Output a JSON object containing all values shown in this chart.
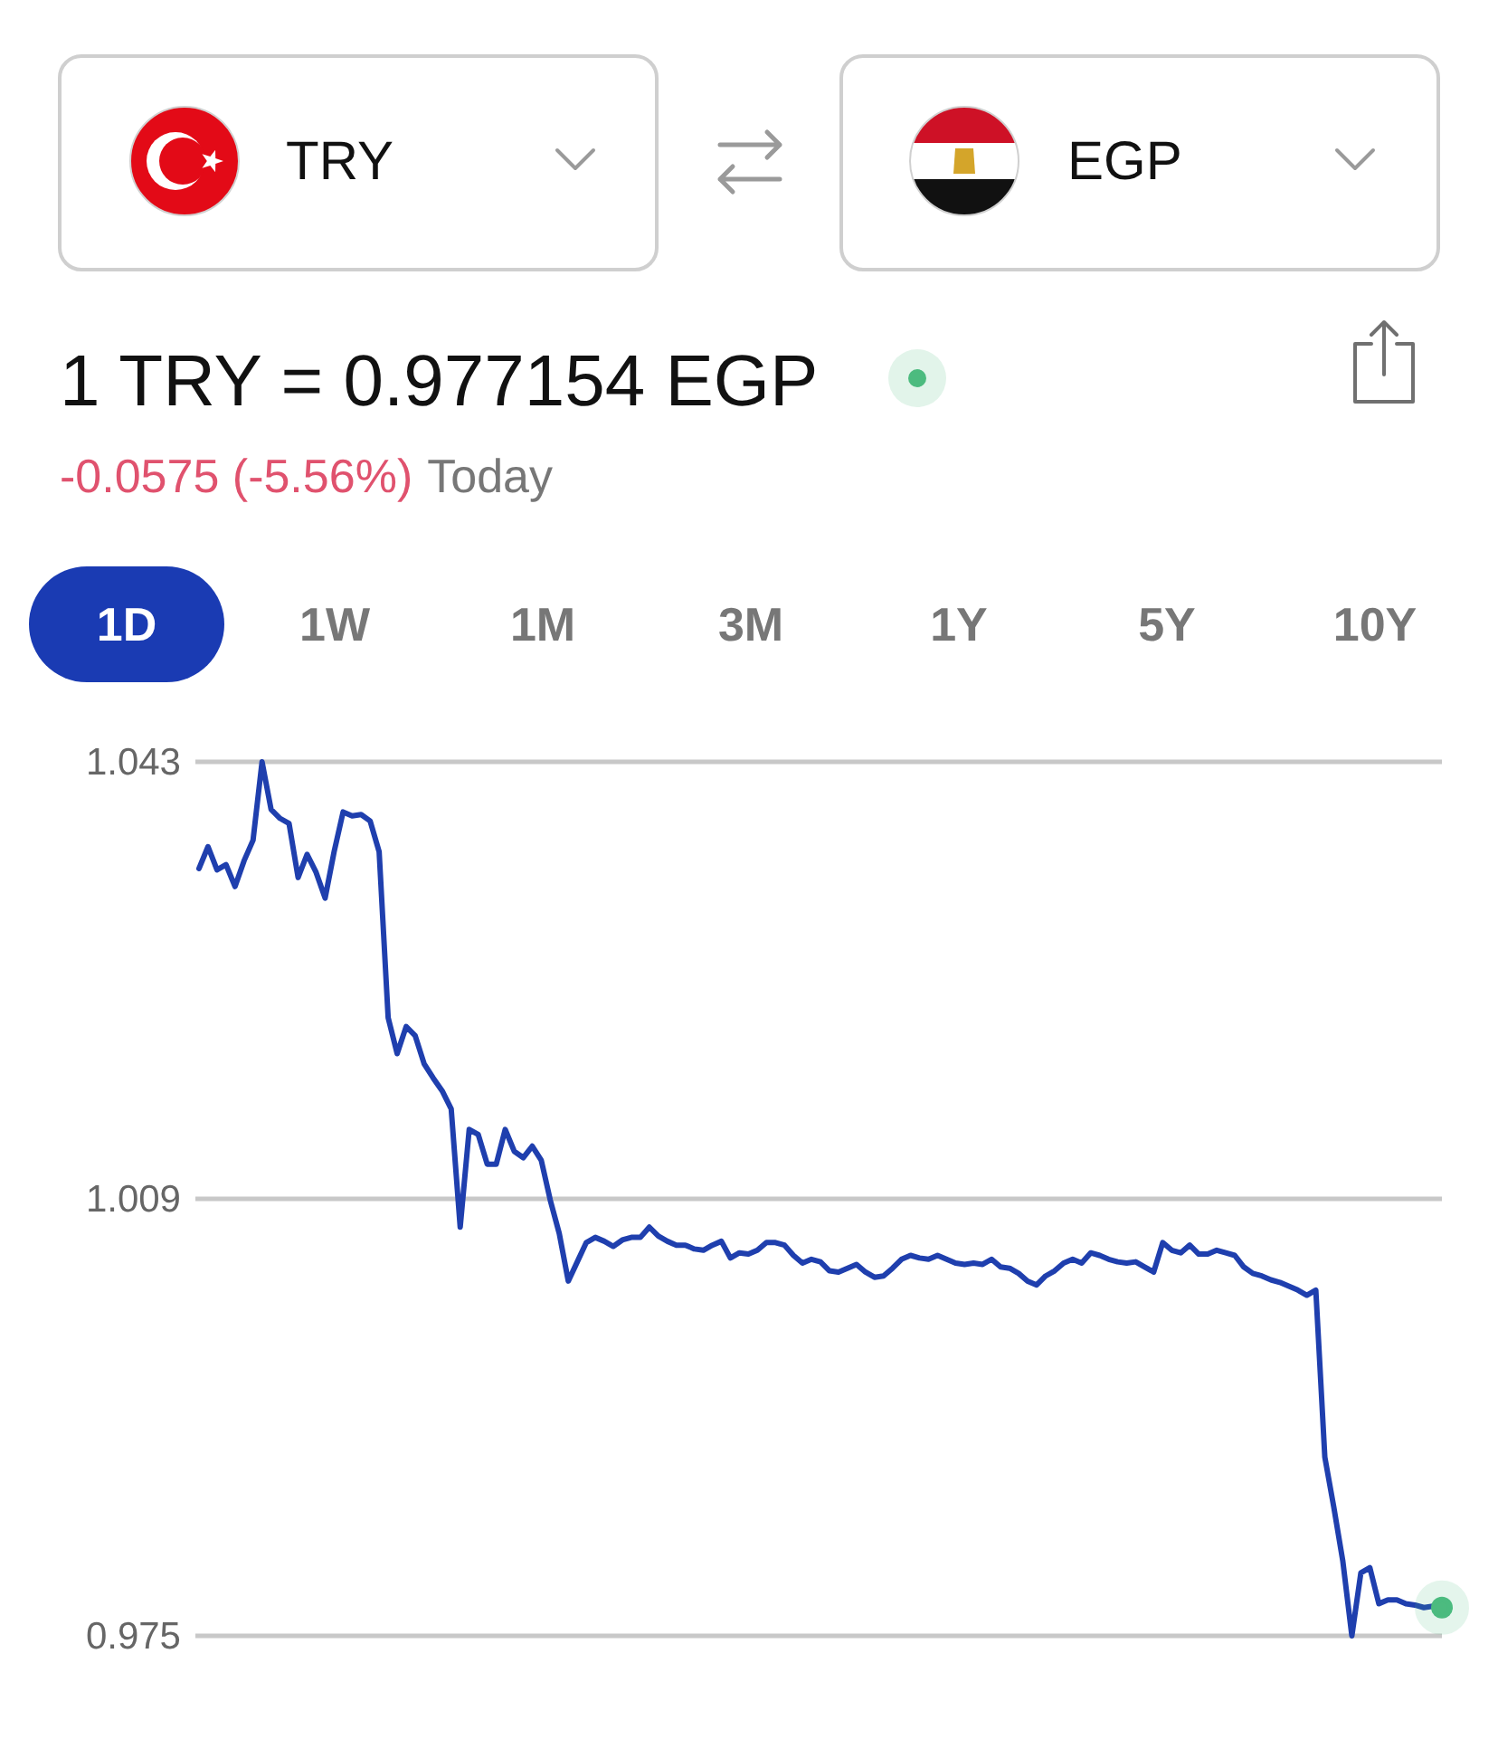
{
  "chart_data": {
    "type": "line",
    "title": "1 TRY = 0.977154 EGP",
    "subtitle": "-0.0575 (-5.56%)",
    "annotations": [
      "TRY",
      "EGP",
      "Today",
      "1D",
      "1W",
      "1M",
      "3M",
      "1Y",
      "5Y",
      "10Y"
    ],
    "categories": [
      null,
      null,
      null,
      null,
      null,
      null,
      null,
      null,
      null,
      null,
      null,
      null,
      null,
      null,
      null,
      null,
      null,
      null,
      null,
      null,
      null,
      null,
      null,
      null,
      null,
      null,
      null,
      null,
      null,
      null,
      null,
      null,
      null,
      null,
      null,
      null,
      null,
      null,
      null,
      null,
      null,
      null,
      null,
      null,
      null,
      null,
      null,
      null,
      null,
      null,
      null,
      null,
      null,
      null,
      null,
      null,
      null,
      null,
      null,
      null,
      null,
      null,
      null,
      null,
      null,
      null,
      null,
      null,
      null,
      null,
      null,
      null,
      null,
      null,
      null,
      null,
      null,
      null,
      null,
      null,
      null,
      null,
      null,
      null,
      null,
      null,
      null,
      null,
      null,
      null,
      null,
      null,
      null,
      null,
      null,
      null,
      null,
      null,
      null,
      null,
      null,
      null,
      null,
      null,
      null,
      null,
      null,
      null,
      null,
      null,
      null,
      null,
      null,
      null,
      null,
      null,
      null,
      null,
      null,
      null,
      null,
      null,
      null,
      null,
      null,
      null,
      null,
      null,
      null,
      null,
      null,
      null,
      null,
      null,
      null,
      null,
      null,
      null,
      null
    ],
    "series": [
      {
        "color": "#1f3fae",
        "values": [
          1.0347,
          1.0364,
          1.0346,
          1.035,
          1.0333,
          1.0353,
          1.0369,
          1.043,
          1.0393,
          1.0386,
          1.0382,
          1.034,
          1.0358,
          1.0344,
          1.0324,
          1.036,
          1.0391,
          1.0388,
          1.0389,
          1.0384,
          1.036,
          1.0231,
          1.0203,
          1.0224,
          1.0217,
          1.0195,
          1.0184,
          1.0174,
          1.016,
          1.0068,
          1.0144,
          1.014,
          1.0117,
          1.0117,
          1.0144,
          1.0127,
          1.0122,
          1.0131,
          1.012,
          1.0089,
          1.0063,
          1.0026,
          1.0041,
          1.0056,
          1.006,
          1.0057,
          1.0053,
          1.0058,
          1.006,
          1.006,
          1.0068,
          1.0061,
          1.0057,
          1.0054,
          1.0054,
          1.0051,
          1.005,
          1.0054,
          1.0057,
          1.0044,
          1.0048,
          1.0047,
          1.005,
          1.0056,
          1.0056,
          1.0054,
          1.0046,
          1.004,
          1.0043,
          1.0041,
          1.0034,
          1.0033,
          1.0036,
          1.0039,
          1.0033,
          1.0029,
          1.003,
          1.0036,
          1.0043,
          1.0046,
          1.0044,
          1.0043,
          1.0046,
          1.0043,
          1.004,
          1.0039,
          1.004,
          1.0039,
          1.0043,
          1.0037,
          1.0036,
          1.0032,
          1.0026,
          1.0023,
          1.003,
          1.0034,
          1.004,
          1.0043,
          1.004,
          1.0048,
          1.0046,
          1.0043,
          1.0041,
          1.004,
          1.0041,
          1.0037,
          1.0033,
          1.0056,
          1.005,
          1.0048,
          1.0054,
          1.0047,
          1.0047,
          1.005,
          1.0048,
          1.0046,
          1.0037,
          1.0032,
          1.003,
          1.0027,
          1.0025,
          1.0022,
          1.0019,
          1.0015,
          1.0019,
          0.9889,
          0.985,
          0.9808,
          0.975,
          0.9799,
          0.9803,
          0.9775,
          0.9778,
          0.9778,
          0.9775,
          0.9774,
          0.9772,
          0.9773,
          0.9772
        ]
      },
      {
        "type": "scatter",
        "color": "#4cbb7f",
        "marker": "circle",
        "values": [
          null,
          null,
          null,
          null,
          null,
          null,
          null,
          null,
          null,
          null,
          null,
          null,
          null,
          null,
          null,
          null,
          null,
          null,
          null,
          null,
          null,
          null,
          null,
          null,
          null,
          null,
          null,
          null,
          null,
          null,
          null,
          null,
          null,
          null,
          null,
          null,
          null,
          null,
          null,
          null,
          null,
          null,
          null,
          null,
          null,
          null,
          null,
          null,
          null,
          null,
          null,
          null,
          null,
          null,
          null,
          null,
          null,
          null,
          null,
          null,
          null,
          null,
          null,
          null,
          null,
          null,
          null,
          null,
          null,
          null,
          null,
          null,
          null,
          null,
          null,
          null,
          null,
          null,
          null,
          null,
          null,
          null,
          null,
          null,
          null,
          null,
          null,
          null,
          null,
          null,
          null,
          null,
          null,
          null,
          null,
          null,
          null,
          null,
          null,
          null,
          null,
          null,
          null,
          null,
          null,
          null,
          null,
          null,
          null,
          null,
          null,
          null,
          null,
          null,
          null,
          null,
          null,
          null,
          null,
          null,
          null,
          null,
          null,
          null,
          null,
          null,
          null,
          null,
          null,
          null,
          null,
          null,
          null,
          null,
          null,
          null,
          null,
          null,
          0.9772
        ]
      }
    ],
    "ylim": [
      0.975,
      1.043
    ],
    "yticks": [
      1.043,
      1.009,
      0.975
    ],
    "grid": "y",
    "tick_labels": "y",
    "marker": "none",
    "line_style": "solid"
  }
}
